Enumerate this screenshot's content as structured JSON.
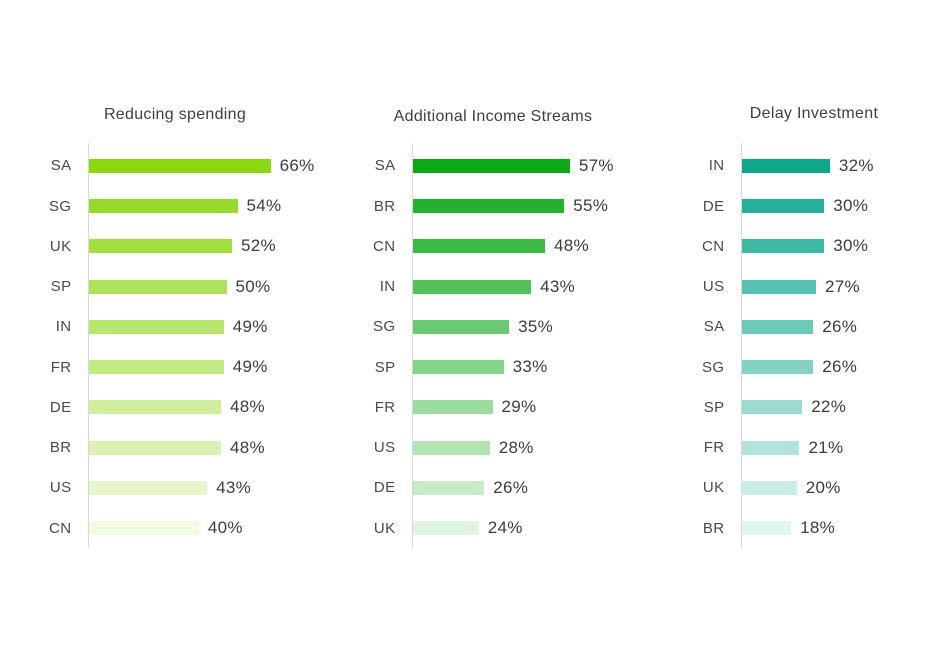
{
  "page": {
    "background": "#ffffff"
  },
  "style": {
    "axis_color": "#d9d9d9",
    "category_label_color": "#4a4a4a",
    "value_label_color": "#3d3d3d",
    "title_color": "#3f3f3f"
  },
  "chart_data": [
    {
      "type": "bar",
      "orientation": "horizontal",
      "title": "Reducing spending",
      "categories": [
        "SA",
        "SG",
        "UK",
        "SP",
        "IN",
        "FR",
        "DE",
        "BR",
        "US",
        "CN"
      ],
      "values": [
        66,
        54,
        52,
        50,
        49,
        49,
        48,
        48,
        43,
        40
      ],
      "value_suffix": "%",
      "value_labels": "outside-end",
      "base_color": "#8cd612",
      "fade": {
        "from": 1.0,
        "to": 0.12
      },
      "xlim": [
        0,
        100
      ],
      "grid": false,
      "legend": "none"
    },
    {
      "type": "bar",
      "orientation": "horizontal",
      "title": "Additional Income Streams",
      "categories": [
        "SA",
        "BR",
        "CN",
        "IN",
        "SG",
        "SP",
        "FR",
        "US",
        "DE",
        "UK"
      ],
      "values": [
        57,
        55,
        48,
        43,
        35,
        33,
        29,
        28,
        26,
        24
      ],
      "value_suffix": "%",
      "value_labels": "outside-end",
      "base_color": "#0ca816",
      "fade": {
        "from": 1.0,
        "to": 0.12
      },
      "xlim": [
        0,
        100
      ],
      "grid": false,
      "legend": "none"
    },
    {
      "type": "bar",
      "orientation": "horizontal",
      "title": "Delay Investment",
      "categories": [
        "IN",
        "DE",
        "CN",
        "US",
        "SA",
        "SG",
        "SP",
        "FR",
        "UK",
        "BR"
      ],
      "values": [
        32,
        30,
        30,
        27,
        26,
        26,
        22,
        21,
        20,
        18
      ],
      "value_suffix": "%",
      "value_labels": "outside-end",
      "base_color": "#0ea78c",
      "fade": {
        "from": 1.0,
        "to": 0.12
      },
      "xlim": [
        0,
        100
      ],
      "grid": false,
      "legend": "none"
    }
  ]
}
